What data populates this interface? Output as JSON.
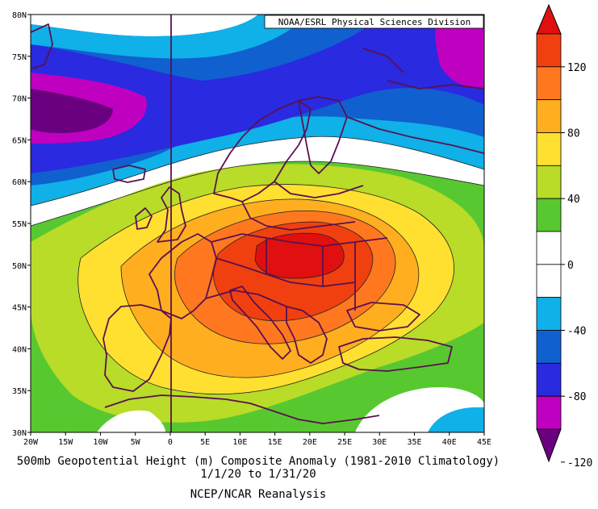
{
  "source_label": "NOAA/ESRL Physical Sciences Division",
  "title": {
    "line1": "500mb Geopotential Height (m) Composite Anomaly (1981-2010 Climatology)",
    "line2": "1/1/20  to 1/31/20",
    "line3": "NCEP/NCAR Reanalysis"
  },
  "lat_ticks": [
    "80N",
    "75N",
    "70N",
    "65N",
    "60N",
    "55N",
    "50N",
    "45N",
    "40N",
    "35N",
    "30N"
  ],
  "lon_ticks": [
    "20W",
    "15W",
    "10W",
    "5W",
    "0",
    "5E",
    "10E",
    "15E",
    "20E",
    "25E",
    "30E",
    "35E",
    "40E",
    "45E"
  ],
  "colorbar": {
    "labels": [
      "120",
      "80",
      "40",
      "0",
      "-40",
      "-80",
      "-120"
    ],
    "colors": [
      "#6a0080",
      "#c000c0",
      "#2a2ae0",
      "#1060d0",
      "#10b0e8",
      "#ffffff",
      "#ffffff",
      "#58c830",
      "#b8dc28",
      "#ffe030",
      "#ffae20",
      "#ff7820",
      "#f04010",
      "#e01010"
    ]
  }
}
